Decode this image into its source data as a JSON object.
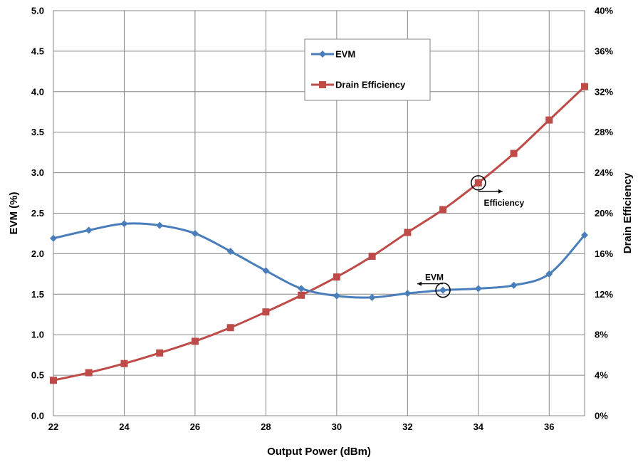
{
  "chart_data": {
    "type": "line",
    "x": [
      22,
      23,
      24,
      25,
      26,
      27,
      28,
      29,
      30,
      31,
      32,
      33,
      34,
      35,
      36,
      37
    ],
    "series": [
      {
        "name": "EVM",
        "axis": "left",
        "color": "#4a7ebb",
        "marker": "diamond",
        "values": [
          2.19,
          2.29,
          2.37,
          2.35,
          2.25,
          2.03,
          1.79,
          1.57,
          1.48,
          1.46,
          1.51,
          1.55,
          1.57,
          1.61,
          1.75,
          2.23
        ]
      },
      {
        "name": "Drain Efficiency",
        "axis": "right",
        "color": "#be4b48",
        "marker": "square",
        "values": [
          3.5,
          4.25,
          5.15,
          6.2,
          7.35,
          8.7,
          10.25,
          11.9,
          13.7,
          15.75,
          18.1,
          20.35,
          23.0,
          25.9,
          29.2,
          32.5
        ]
      }
    ],
    "xlabel": "Output Power (dBm)",
    "ylabel": "EVM (%)",
    "y2label": "Drain Efficiency",
    "xlim": [
      22,
      37
    ],
    "ylim": [
      0,
      5
    ],
    "y2lim": [
      0,
      40
    ],
    "x_ticks": [
      "22",
      "24",
      "26",
      "28",
      "30",
      "32",
      "34",
      "36"
    ],
    "y_ticks": [
      "0.0",
      "0.5",
      "1.0",
      "1.5",
      "2.0",
      "2.5",
      "3.0",
      "3.5",
      "4.0",
      "4.5",
      "5.0"
    ],
    "y2_ticks": [
      "0%",
      "4%",
      "8%",
      "12%",
      "16%",
      "20%",
      "24%",
      "28%",
      "32%",
      "36%",
      "40%"
    ],
    "grid": true,
    "legend_position": "top-center",
    "annotations": [
      {
        "text": "Efficiency",
        "series": 1,
        "x": 34,
        "arrow": "right"
      },
      {
        "text": "EVM",
        "series": 0,
        "x": 33,
        "arrow": "left"
      }
    ]
  }
}
